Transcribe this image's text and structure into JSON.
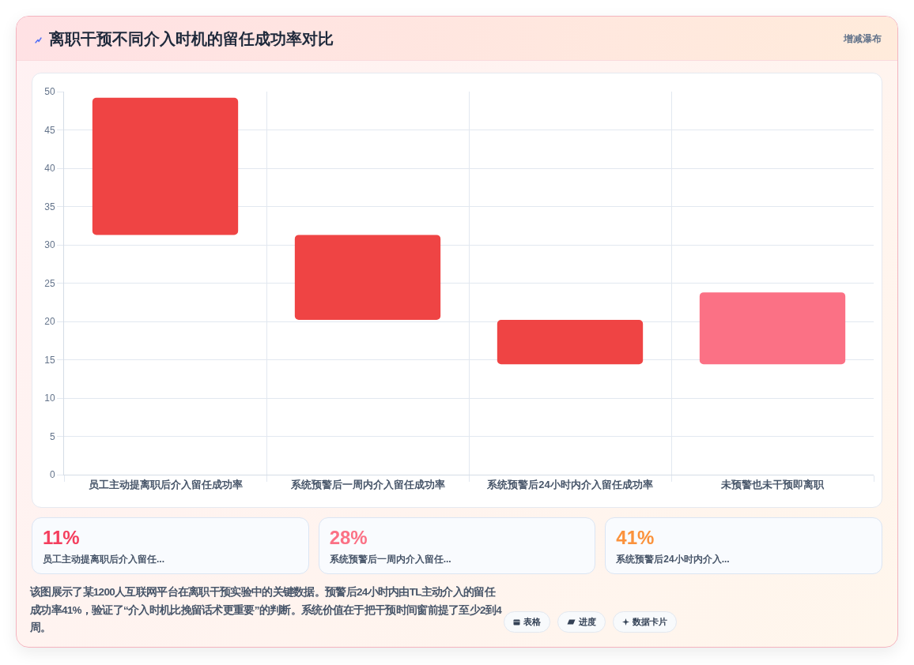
{
  "chart_data": [
    {
      "type": "bar",
      "title": "离职干预不同介入时机的留任成功率对比",
      "categories": [
        "员工主动提离职后介入留任成功率",
        "系统预警后一周内介入留任成功率",
        "系统预警后24小时内介入留任成功率",
        "未预警也未干预即离职"
      ],
      "base": [
        31.3,
        20.2,
        14.4,
        14.4
      ],
      "values": [
        17.9,
        11.1,
        5.8,
        9.4
      ],
      "colors": [
        "#ef4444",
        "#ef4444",
        "#ef4444",
        "#fb7185"
      ],
      "ylim": [
        0,
        50
      ],
      "yticks": [
        0,
        5,
        10,
        15,
        20,
        25,
        30,
        35,
        40,
        45,
        50
      ],
      "grid": true,
      "annotations": [
        "增减瀑布",
        "该图展示了某1200人互联网平台在离职干预实验中的关键数据。预警后24小时内由TL主动介入的留任成功率41%，验证了“介入时机比挽留话术更重要”的判断。系统价值在于把干预时间窗前提了至少2到4周。",
        "表格",
        "进度",
        "数据卡片"
      ]
    },
    {
      "type": "other",
      "annotations": [
        "11%",
        "员工主动提离职后介入留任...",
        "28%",
        "系统预警后一周内介入留任...",
        "41%",
        "系统预警后24小时内介入..."
      ],
      "colors": [
        "#f43f5e",
        "#fb7185",
        "#fb923c"
      ]
    }
  ]
}
